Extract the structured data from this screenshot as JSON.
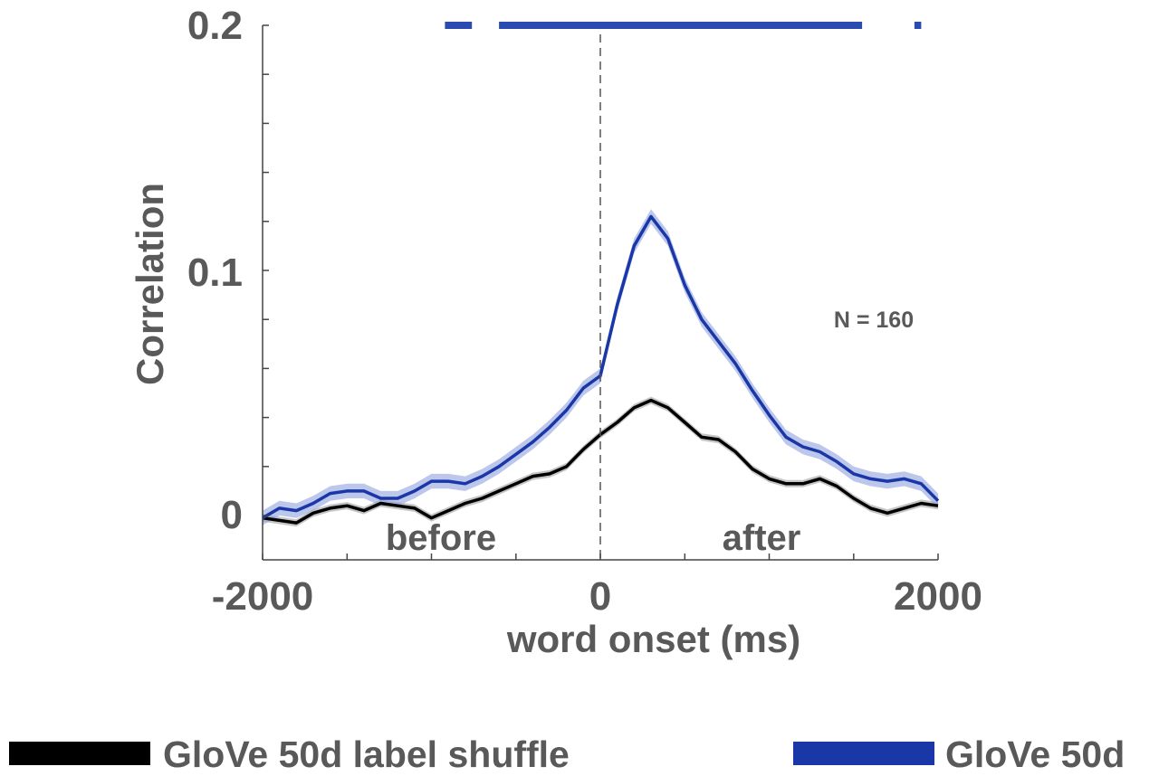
{
  "chart_data": {
    "type": "line",
    "xlabel": "word onset (ms)",
    "ylabel": "Correlation",
    "xlim": [
      -2000,
      2000
    ],
    "ylim": [
      -0.01,
      0.2
    ],
    "x_ticks": [
      -2000,
      0,
      2000
    ],
    "x_tick_labels": [
      "-2000",
      "0",
      "2000"
    ],
    "y_ticks": [
      0,
      0.1,
      0.2
    ],
    "y_tick_labels": [
      "0",
      "0.1",
      "0.2"
    ],
    "grid": false,
    "legend_position": "bottom",
    "annotations": {
      "n_label": "N = 160",
      "before_label": "before",
      "after_label": "after",
      "onset_line_x": 0
    },
    "significance": {
      "y": 0.2,
      "color": "#2a4bb0",
      "intervals": [
        [
          -920,
          -760
        ],
        [
          -600,
          1550
        ],
        [
          1860,
          1900
        ]
      ]
    },
    "series": [
      {
        "name": "GloVe 50d label shuffle",
        "color": "#000000",
        "band_color": "#9e9e9e",
        "band_halfwidth": 0.0015,
        "x": [
          -2000,
          -1900,
          -1800,
          -1700,
          -1600,
          -1500,
          -1400,
          -1300,
          -1200,
          -1100,
          -1000,
          -900,
          -800,
          -700,
          -600,
          -500,
          -400,
          -300,
          -200,
          -100,
          0,
          100,
          200,
          300,
          400,
          500,
          600,
          700,
          800,
          900,
          1000,
          1100,
          1200,
          1300,
          1400,
          1500,
          1600,
          1700,
          1800,
          1900,
          2000
        ],
        "values": [
          -0.001,
          -0.002,
          -0.003,
          0.001,
          0.003,
          0.004,
          0.002,
          0.005,
          0.004,
          0.003,
          -0.001,
          0.002,
          0.005,
          0.007,
          0.01,
          0.013,
          0.016,
          0.017,
          0.02,
          0.027,
          0.033,
          0.038,
          0.044,
          0.047,
          0.044,
          0.038,
          0.032,
          0.031,
          0.026,
          0.019,
          0.015,
          0.013,
          0.013,
          0.015,
          0.012,
          0.007,
          0.003,
          0.001,
          0.003,
          0.005,
          0.004
        ]
      },
      {
        "name": "GloVe 50d",
        "color": "#1a37a8",
        "band_color": "#8fa2de",
        "band_halfwidth": 0.003,
        "x": [
          -2000,
          -1900,
          -1800,
          -1700,
          -1600,
          -1500,
          -1400,
          -1300,
          -1200,
          -1100,
          -1000,
          -900,
          -800,
          -700,
          -600,
          -500,
          -400,
          -300,
          -200,
          -100,
          0,
          100,
          200,
          300,
          400,
          500,
          600,
          700,
          800,
          900,
          1000,
          1100,
          1200,
          1300,
          1400,
          1500,
          1600,
          1700,
          1800,
          1900,
          2000
        ],
        "values": [
          -0.001,
          0.003,
          0.002,
          0.005,
          0.009,
          0.01,
          0.01,
          0.007,
          0.007,
          0.01,
          0.014,
          0.014,
          0.013,
          0.016,
          0.02,
          0.025,
          0.03,
          0.036,
          0.043,
          0.052,
          0.057,
          0.086,
          0.11,
          0.122,
          0.113,
          0.094,
          0.08,
          0.071,
          0.062,
          0.051,
          0.041,
          0.032,
          0.028,
          0.026,
          0.022,
          0.017,
          0.015,
          0.014,
          0.015,
          0.013,
          0.006
        ]
      }
    ]
  }
}
